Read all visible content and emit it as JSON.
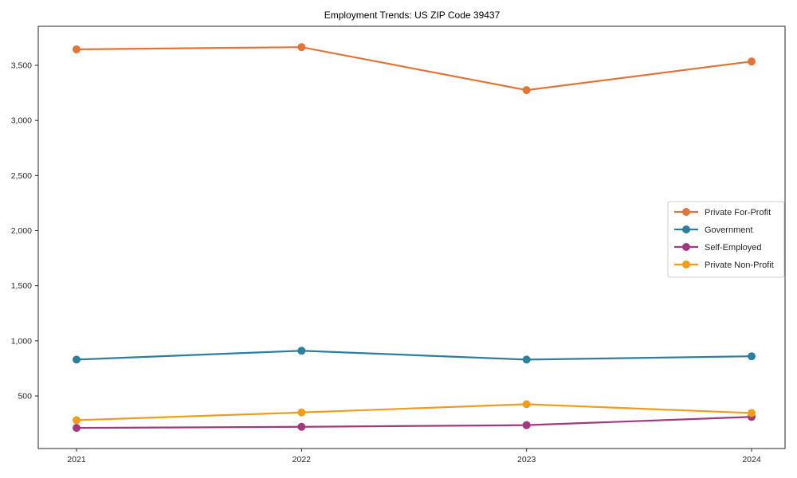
{
  "chart_data": {
    "type": "line",
    "title": "Employment Trends: US ZIP Code 39437",
    "xlabel": "",
    "ylabel": "",
    "x": [
      2021,
      2022,
      2023,
      2024
    ],
    "x_tick_labels": [
      "2021",
      "2022",
      "2023",
      "2024"
    ],
    "series": [
      {
        "name": "Private For-Profit",
        "color": "#e0753a",
        "values": [
          3645,
          3665,
          3275,
          3535
        ]
      },
      {
        "name": "Government",
        "color": "#2d7f9e",
        "values": [
          830,
          910,
          830,
          860
        ]
      },
      {
        "name": "Self-Employed",
        "color": "#a13a7d",
        "values": [
          210,
          220,
          235,
          310
        ]
      },
      {
        "name": "Private Non-Profit",
        "color": "#f09c1f",
        "values": [
          280,
          350,
          425,
          345
        ]
      }
    ],
    "y_ticks": [
      500,
      1000,
      1500,
      2000,
      2500,
      3000,
      3500
    ],
    "y_tick_labels": [
      "500",
      "1,000",
      "1,500",
      "2,000",
      "2,500",
      "3,000",
      "3,500"
    ],
    "ylim": [
      20,
      3860
    ],
    "grid": false,
    "legend_position": "center-right",
    "frame_color": "#262626",
    "background_color": "#ffffff"
  }
}
